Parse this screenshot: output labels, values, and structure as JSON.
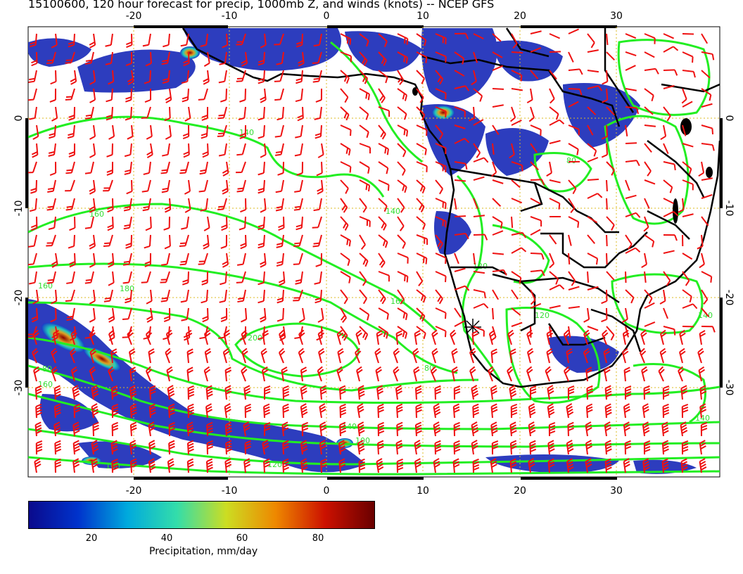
{
  "title": "15100600, 120 hour forecast for precip, 1000mb Z, and winds (knots) -- NCEP GFS",
  "map": {
    "lon_ticks_top": [
      "-20",
      "-10",
      "0",
      "10",
      "20",
      "30"
    ],
    "lon_ticks_bottom": [
      "-20",
      "-10",
      "0",
      "10",
      "20",
      "30"
    ],
    "lat_ticks_left": [
      "0",
      "-10",
      "-20",
      "-30"
    ],
    "lat_ticks_right": [
      "0",
      "-10",
      "-20",
      "-30"
    ],
    "contour_labels": [
      "140",
      "160",
      "160",
      "180",
      "200",
      "160",
      "140",
      "120",
      "80",
      "80",
      "120",
      "140",
      "160",
      "140",
      "100",
      "120",
      "140",
      "160",
      "80"
    ],
    "colors": {
      "coastline": "#000000",
      "contours": "#22ee22",
      "wind_barbs": "#ee1111",
      "grid": "#ddbb22"
    }
  },
  "colorbar": {
    "ticks": [
      "20",
      "40",
      "60",
      "80"
    ],
    "label": "Precipitation, mm/day",
    "stops": [
      "#0a0a8c",
      "#0033cc",
      "#00aadd",
      "#33ddaa",
      "#ccdd22",
      "#ee8800",
      "#cc1100",
      "#6a0000"
    ]
  }
}
